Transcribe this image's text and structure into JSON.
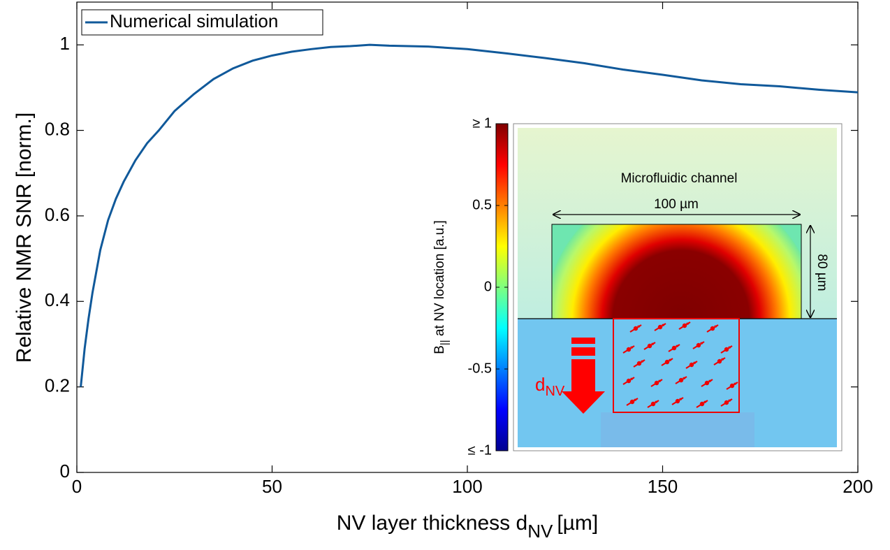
{
  "chart_data": {
    "type": "line",
    "x_label": {
      "text": "NV layer thickness d",
      "subscript": "NV",
      "unit": "[µm]"
    },
    "y_label": "Relative NMR SNR [norm.]",
    "x": [
      1,
      2,
      3,
      4,
      5,
      6,
      8,
      10,
      12,
      15,
      18,
      21,
      25,
      30,
      35,
      40,
      45,
      50,
      55,
      60,
      65,
      70,
      75,
      80,
      90,
      100,
      110,
      120,
      130,
      140,
      150,
      160,
      170,
      180,
      190,
      200
    ],
    "series": [
      {
        "name": "Numerical simulation",
        "color": "#10599a",
        "values": [
          0.2,
          0.29,
          0.36,
          0.42,
          0.47,
          0.52,
          0.59,
          0.64,
          0.68,
          0.73,
          0.77,
          0.8,
          0.845,
          0.885,
          0.92,
          0.945,
          0.963,
          0.975,
          0.984,
          0.99,
          0.995,
          0.997,
          1.0,
          0.998,
          0.996,
          0.99,
          0.98,
          0.969,
          0.957,
          0.942,
          0.93,
          0.917,
          0.908,
          0.903,
          0.895,
          0.889
        ]
      }
    ],
    "xlim": [
      0,
      200
    ],
    "xticks": [
      0,
      50,
      100,
      150,
      200
    ],
    "ylim": [
      0,
      1.1
    ],
    "yticks": [
      0,
      0.2,
      0.4,
      0.6,
      0.8,
      1
    ],
    "legend": "upper left",
    "grid": false
  },
  "inset": {
    "colorbar_label": {
      "text": "B",
      "subscript": "||",
      "rest": " at NV location [a.u.]"
    },
    "clim": [
      -1,
      1
    ],
    "colorbar_ticks": [
      {
        "value": 1,
        "label": "≥ 1"
      },
      0.5,
      0,
      -0.5,
      {
        "value": -1,
        "label": "≤ -1"
      }
    ],
    "channel_label": "Microfluidic channel",
    "width_label": "100 µm",
    "height_label": "80 µm",
    "depth_label": {
      "text": "d",
      "subscript": "NV"
    }
  }
}
